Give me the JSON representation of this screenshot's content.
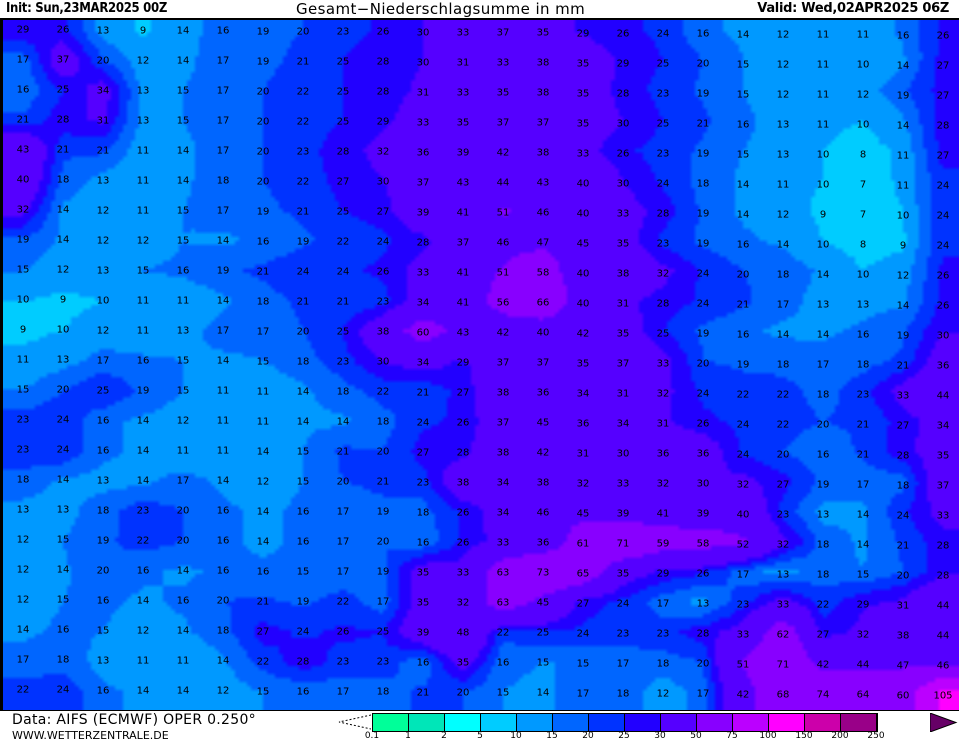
{
  "header": {
    "init": "Init: Sun,23MAR2025 00Z",
    "title": "Gesamt−Niederschlagsumme in mm",
    "valid": "Valid: Wed,02APR2025 06Z"
  },
  "footer": {
    "source": "Data: AIFS (ECMWF) OPER 0.250°",
    "site": "WWW.WETTERZENTRALE.DE"
  },
  "legend": {
    "unit": "mm",
    "ticks": [
      "0.1",
      "1",
      "2",
      "5",
      "10",
      "15",
      "20",
      "25",
      "30",
      "50",
      "75",
      "100",
      "150",
      "200",
      "250"
    ],
    "thresholds": [
      0.1,
      1,
      2,
      5,
      10,
      15,
      20,
      25,
      30,
      50,
      75,
      100,
      150,
      200,
      250
    ],
    "colors": [
      "#00ff99",
      "#00e6b8",
      "#00ffff",
      "#00ccff",
      "#0099ff",
      "#0066ff",
      "#0033ff",
      "#2200ff",
      "#5500ff",
      "#8800ff",
      "#bb00ff",
      "#ff00ff",
      "#cc00aa",
      "#990088",
      "#660066"
    ]
  },
  "map": {
    "variable": "total precipitation",
    "values_grid": [
      [
        29,
        26,
        13,
        9,
        14,
        16,
        19,
        20,
        23,
        26,
        30,
        33,
        37,
        35,
        29,
        26,
        24,
        16,
        14,
        12,
        11,
        11,
        16,
        26
      ],
      [
        17,
        37,
        20,
        12,
        14,
        17,
        19,
        21,
        25,
        28,
        30,
        31,
        33,
        38,
        35,
        29,
        25,
        20,
        15,
        12,
        11,
        10,
        14,
        27
      ],
      [
        16,
        25,
        34,
        13,
        15,
        17,
        20,
        22,
        25,
        28,
        31,
        33,
        35,
        38,
        35,
        28,
        23,
        19,
        15,
        12,
        11,
        12,
        19,
        27
      ],
      [
        21,
        28,
        31,
        13,
        15,
        17,
        20,
        22,
        25,
        29,
        33,
        35,
        37,
        37,
        35,
        30,
        25,
        21,
        16,
        13,
        11,
        10,
        14,
        28
      ],
      [
        43,
        21,
        21,
        11,
        14,
        17,
        20,
        23,
        28,
        32,
        36,
        39,
        42,
        38,
        33,
        26,
        23,
        19,
        15,
        13,
        10,
        8,
        11,
        27
      ],
      [
        40,
        18,
        13,
        11,
        14,
        18,
        20,
        22,
        27,
        30,
        37,
        43,
        44,
        43,
        40,
        30,
        24,
        18,
        14,
        11,
        10,
        7,
        11,
        24
      ],
      [
        32,
        14,
        12,
        11,
        15,
        17,
        19,
        21,
        25,
        27,
        39,
        41,
        51,
        46,
        40,
        33,
        28,
        19,
        14,
        12,
        9,
        7,
        10,
        24
      ],
      [
        19,
        14,
        12,
        12,
        15,
        14,
        16,
        19,
        22,
        24,
        28,
        37,
        46,
        47,
        45,
        35,
        23,
        19,
        16,
        14,
        10,
        8,
        9,
        24
      ],
      [
        15,
        12,
        13,
        15,
        16,
        19,
        21,
        24,
        24,
        26,
        33,
        41,
        51,
        58,
        40,
        38,
        32,
        24,
        20,
        18,
        14,
        10,
        12,
        26
      ],
      [
        10,
        9,
        10,
        11,
        11,
        14,
        18,
        21,
        21,
        23,
        34,
        41,
        56,
        66,
        40,
        31,
        28,
        24,
        21,
        17,
        13,
        13,
        14,
        26
      ],
      [
        9,
        10,
        12,
        11,
        13,
        17,
        17,
        20,
        25,
        38,
        60,
        43,
        42,
        40,
        42,
        35,
        25,
        19,
        16,
        14,
        14,
        16,
        19,
        30
      ],
      [
        11,
        13,
        17,
        16,
        15,
        14,
        15,
        18,
        23,
        30,
        34,
        29,
        37,
        37,
        35,
        37,
        33,
        20,
        19,
        18,
        17,
        18,
        21,
        36
      ],
      [
        15,
        20,
        25,
        19,
        15,
        11,
        11,
        14,
        18,
        22,
        21,
        27,
        38,
        36,
        34,
        31,
        32,
        24,
        22,
        22,
        18,
        23,
        33,
        44
      ],
      [
        23,
        24,
        16,
        14,
        12,
        11,
        11,
        14,
        14,
        18,
        24,
        26,
        37,
        45,
        36,
        34,
        31,
        26,
        24,
        22,
        20,
        21,
        27,
        34
      ],
      [
        23,
        24,
        16,
        14,
        11,
        11,
        14,
        15,
        21,
        20,
        27,
        28,
        38,
        42,
        31,
        30,
        36,
        36,
        24,
        20,
        16,
        21,
        28,
        35
      ],
      [
        18,
        14,
        13,
        14,
        17,
        14,
        12,
        15,
        20,
        21,
        23,
        38,
        34,
        38,
        32,
        33,
        32,
        30,
        32,
        27,
        19,
        17,
        18,
        37
      ],
      [
        13,
        13,
        18,
        23,
        20,
        16,
        14,
        16,
        17,
        19,
        18,
        26,
        34,
        46,
        45,
        39,
        41,
        39,
        40,
        23,
        13,
        14,
        24,
        33
      ],
      [
        12,
        15,
        19,
        22,
        20,
        16,
        14,
        16,
        17,
        20,
        16,
        26,
        33,
        36,
        61,
        71,
        59,
        58,
        52,
        32,
        18,
        14,
        21,
        28
      ],
      [
        12,
        14,
        20,
        16,
        14,
        16,
        16,
        15,
        17,
        19,
        35,
        33,
        63,
        73,
        65,
        35,
        29,
        26,
        17,
        13,
        18,
        15,
        20,
        28
      ],
      [
        12,
        15,
        16,
        14,
        16,
        20,
        21,
        19,
        22,
        17,
        35,
        32,
        63,
        45,
        27,
        24,
        17,
        13,
        23,
        33,
        22,
        29,
        31,
        44
      ],
      [
        14,
        16,
        15,
        12,
        14,
        18,
        27,
        24,
        26,
        25,
        39,
        48,
        22,
        25,
        24,
        23,
        23,
        28,
        33,
        62,
        27,
        32,
        38,
        44
      ],
      [
        17,
        18,
        13,
        11,
        11,
        14,
        22,
        28,
        23,
        23,
        16,
        35,
        16,
        15,
        15,
        17,
        18,
        20,
        51,
        71,
        42,
        44,
        47,
        46
      ],
      [
        22,
        24,
        16,
        14,
        14,
        12,
        15,
        16,
        17,
        18,
        21,
        20,
        15,
        14,
        17,
        18,
        12,
        17,
        42,
        68,
        74,
        64,
        60,
        105
      ]
    ]
  }
}
